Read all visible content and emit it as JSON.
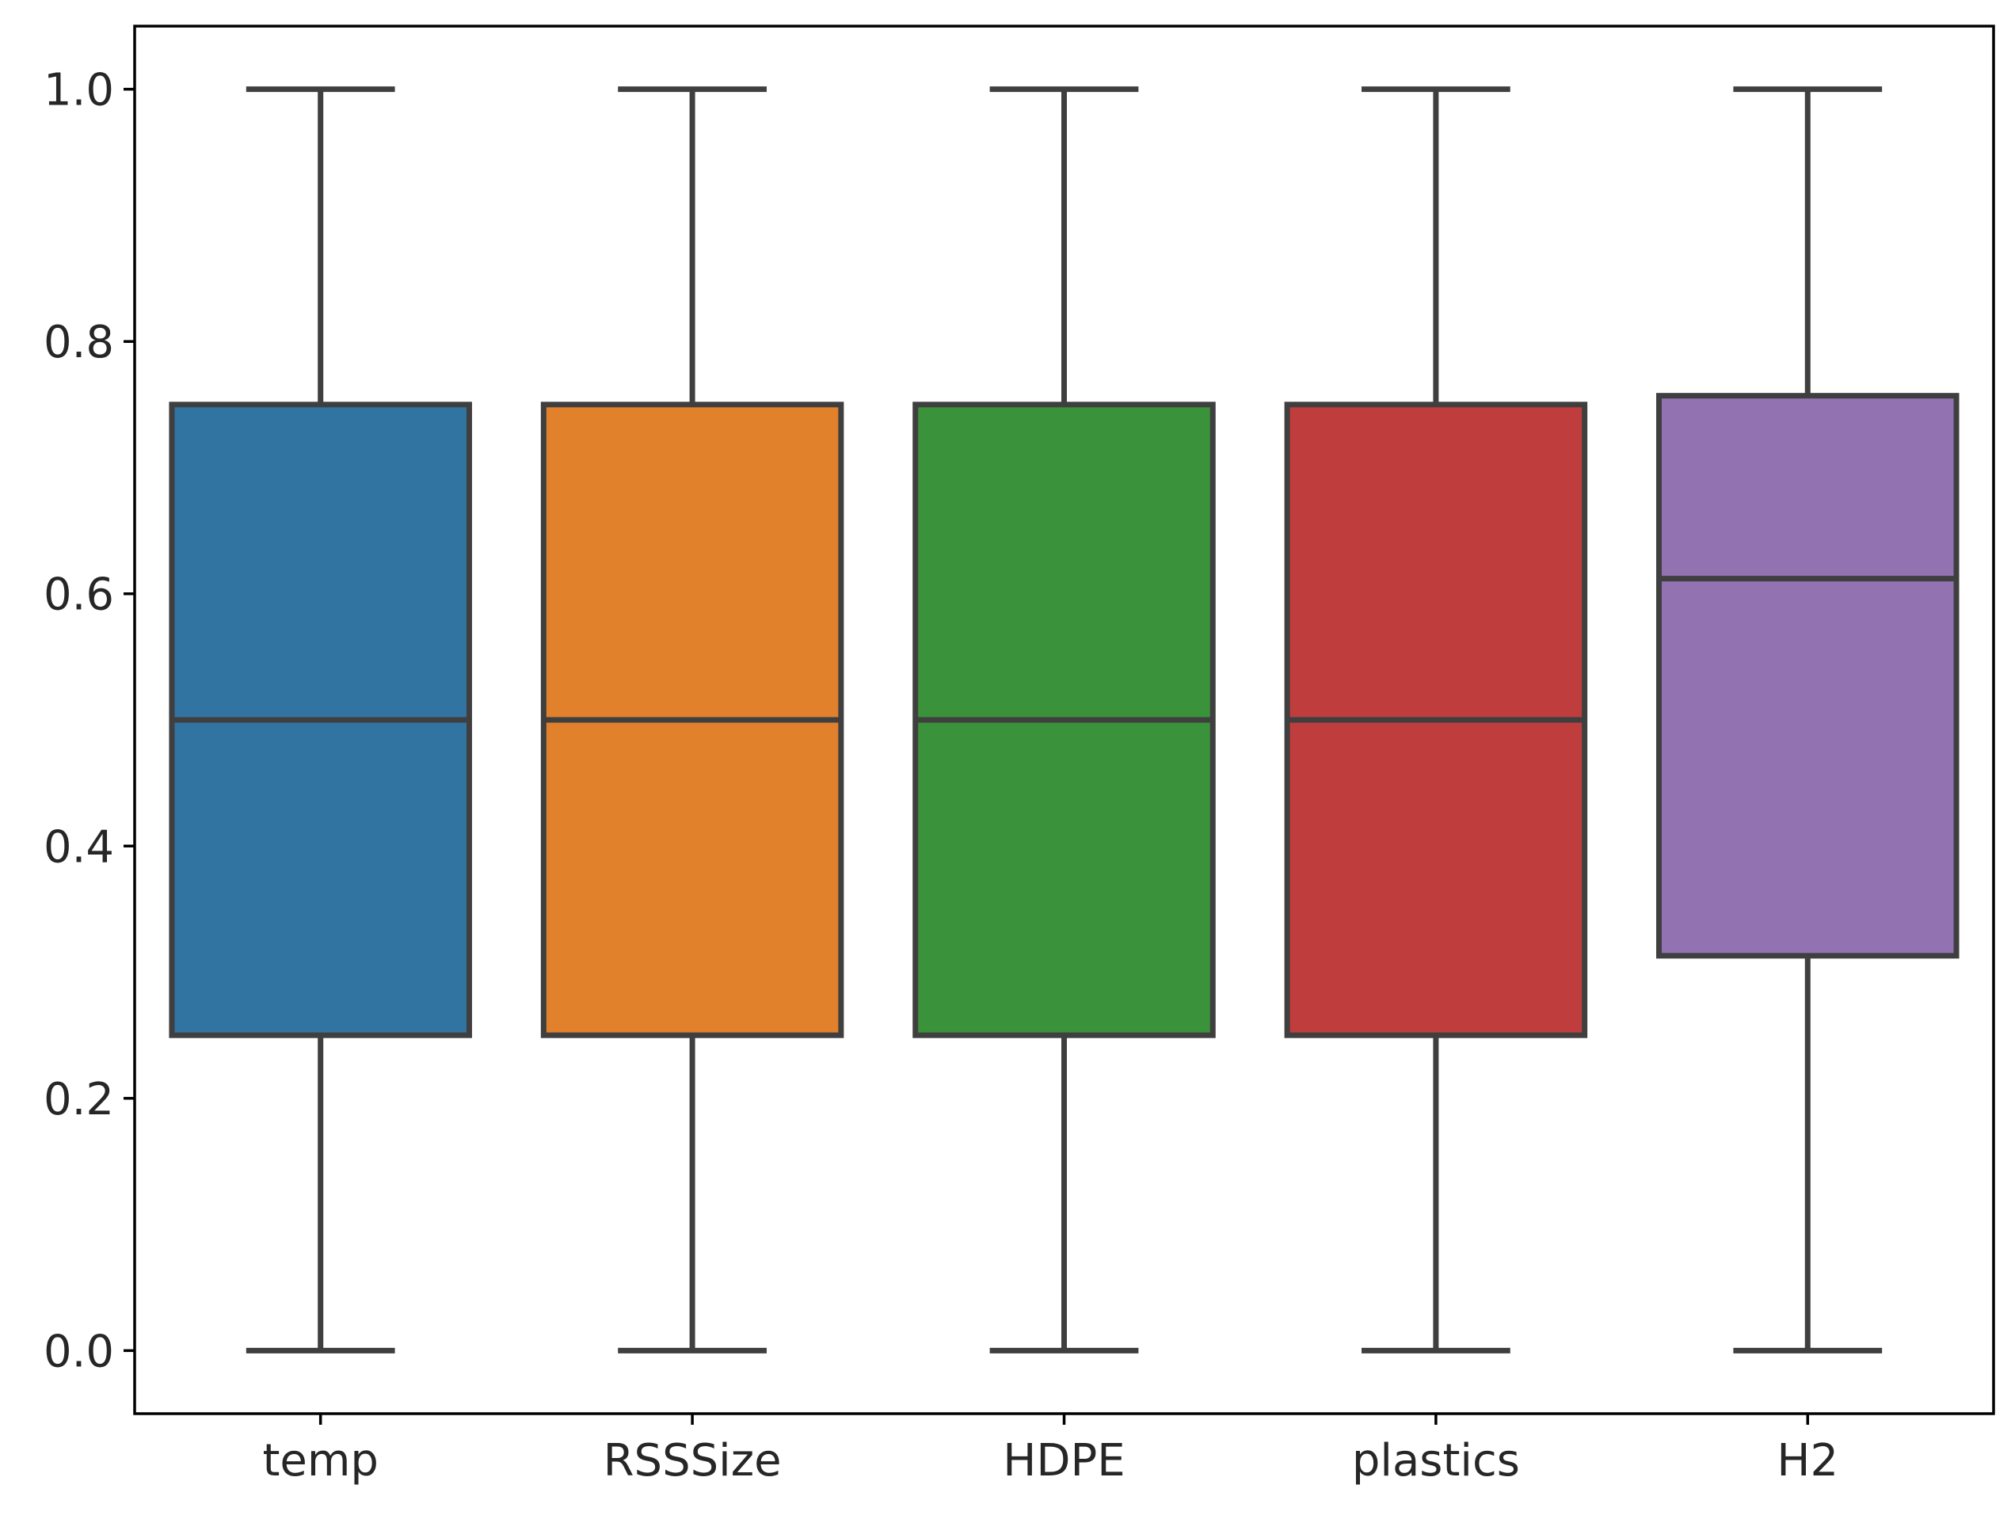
{
  "chart_data": {
    "type": "box",
    "title": "",
    "xlabel": "",
    "ylabel": "",
    "ylim": [
      -0.05,
      1.05
    ],
    "y_ticks": [
      0.0,
      0.2,
      0.4,
      0.6,
      0.8,
      1.0
    ],
    "y_tick_labels": [
      "0.0",
      "0.2",
      "0.4",
      "0.6",
      "0.8",
      "1.0"
    ],
    "grid": false,
    "categories": [
      "temp",
      "RSSSize",
      "HDPE",
      "plastics",
      "H2"
    ],
    "series": [
      {
        "name": "temp",
        "min": 0.0,
        "q1": 0.25,
        "median": 0.5,
        "q3": 0.75,
        "max": 1.0,
        "color": "#3274a1"
      },
      {
        "name": "RSSSize",
        "min": 0.0,
        "q1": 0.25,
        "median": 0.5,
        "q3": 0.75,
        "max": 1.0,
        "color": "#e1812c"
      },
      {
        "name": "HDPE",
        "min": 0.0,
        "q1": 0.25,
        "median": 0.5,
        "q3": 0.75,
        "max": 1.0,
        "color": "#3a923a"
      },
      {
        "name": "plastics",
        "min": 0.0,
        "q1": 0.25,
        "median": 0.5,
        "q3": 0.75,
        "max": 1.0,
        "color": "#c03d3e"
      },
      {
        "name": "H2",
        "min": 0.0,
        "q1": 0.313,
        "median": 0.612,
        "q3": 0.757,
        "max": 1.0,
        "color": "#9372b2"
      }
    ],
    "line_color": "#3f3f3f"
  }
}
